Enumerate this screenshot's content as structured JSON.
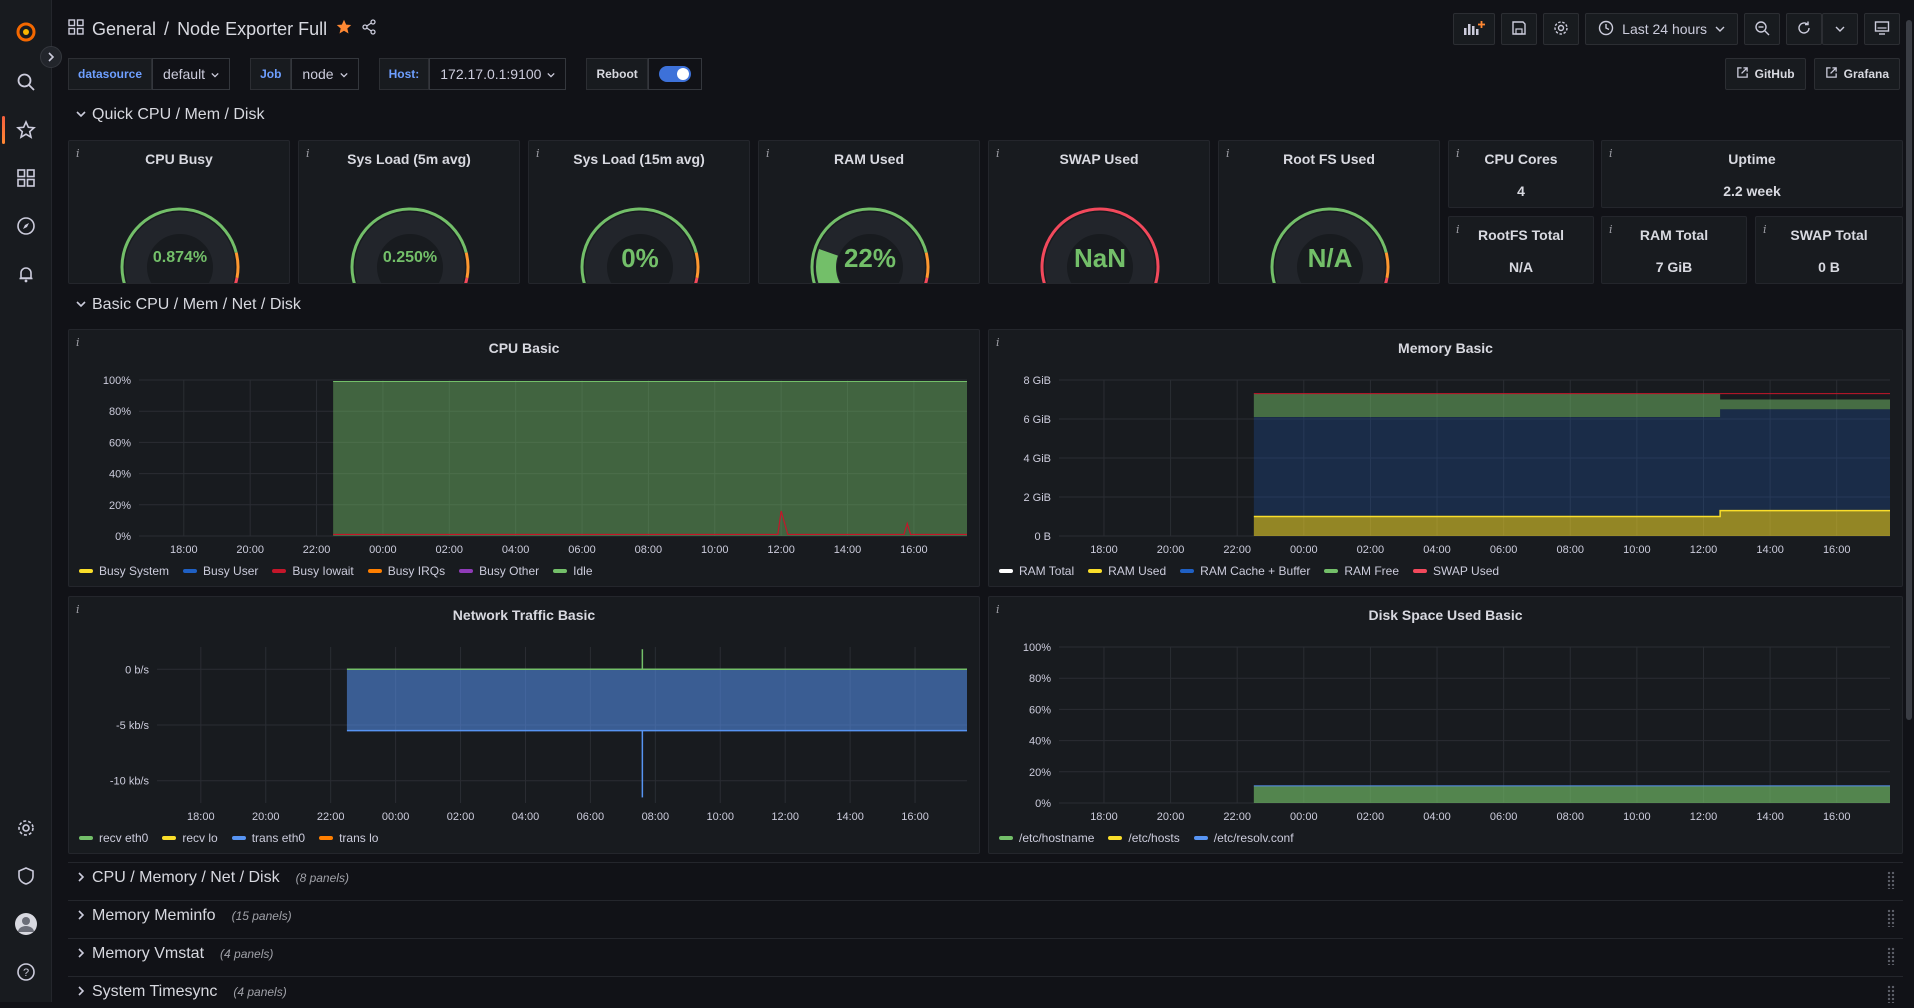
{
  "breadcrumb": {
    "folder": "General",
    "separator": "/",
    "title": "Node Exporter Full"
  },
  "toolbar": {
    "time_range": "Last 24 hours"
  },
  "variables": [
    {
      "label": "datasource",
      "value": "default"
    },
    {
      "label": "Job",
      "value": "node"
    },
    {
      "label": "Host:",
      "value": "172.17.0.1:9100"
    }
  ],
  "reboot_label": "Reboot",
  "links": [
    {
      "label": "GitHub"
    },
    {
      "label": "Grafana"
    }
  ],
  "rows": {
    "quick": "Quick CPU / Mem / Disk",
    "basic": "Basic CPU / Mem / Net / Disk",
    "collapsed": [
      {
        "title": "CPU / Memory / Net / Disk",
        "count": "(8 panels)"
      },
      {
        "title": "Memory Meminfo",
        "count": "(15 panels)"
      },
      {
        "title": "Memory Vmstat",
        "count": "(4 panels)"
      },
      {
        "title": "System Timesync",
        "count": "(4 panels)"
      }
    ]
  },
  "gauges": [
    {
      "title": "CPU Busy",
      "value": "0.874%",
      "fraction": 0.00874
    },
    {
      "title": "Sys Load (5m avg)",
      "value": "0.250%",
      "fraction": 0.0025
    },
    {
      "title": "Sys Load (15m avg)",
      "value": "0%",
      "fraction": 0
    },
    {
      "title": "RAM Used",
      "value": "22%",
      "fraction": 0.22
    },
    {
      "title": "SWAP Used",
      "value": "NaN",
      "fraction": 0
    },
    {
      "title": "Root FS Used",
      "value": "N/A",
      "fraction": 0
    }
  ],
  "stats": [
    {
      "title": "CPU Cores",
      "value": "4"
    },
    {
      "title": "Uptime",
      "value": "2.2 week"
    },
    {
      "title": "RootFS Total",
      "value": "N/A"
    },
    {
      "title": "RAM Total",
      "value": "7 GiB"
    },
    {
      "title": "SWAP Total",
      "value": "0 B"
    }
  ],
  "colors": {
    "green": "#73bf69",
    "yellow": "#fade2a",
    "red": "#f2495c",
    "blue": "#5794f2",
    "orange": "#ff9830",
    "purple": "#b877d9",
    "darkred": "#c4162a"
  },
  "chart_data": [
    {
      "type": "area",
      "title": "CPU Basic",
      "x_ticks": [
        "18:00",
        "20:00",
        "22:00",
        "00:00",
        "02:00",
        "04:00",
        "06:00",
        "08:00",
        "10:00",
        "12:00",
        "14:00",
        "16:00"
      ],
      "y_ticks": [
        "0%",
        "20%",
        "40%",
        "60%",
        "80%",
        "100%"
      ],
      "ylim": [
        0,
        100
      ],
      "data_start": "22:30",
      "series": [
        {
          "name": "Busy System",
          "color": "#fade2a"
        },
        {
          "name": "Busy User",
          "color": "#1f60c4"
        },
        {
          "name": "Busy Iowait",
          "color": "#c4162a"
        },
        {
          "name": "Busy IRQs",
          "color": "#ff7f00"
        },
        {
          "name": "Busy Other",
          "color": "#8f3bb8"
        },
        {
          "name": "Idle",
          "color": "#73bf69",
          "values": [
            99,
            99,
            99,
            99,
            99,
            99,
            99,
            99,
            99,
            98,
            99,
            99
          ]
        }
      ]
    },
    {
      "type": "area",
      "title": "Memory Basic",
      "x_ticks": [
        "18:00",
        "20:00",
        "22:00",
        "00:00",
        "02:00",
        "04:00",
        "06:00",
        "08:00",
        "10:00",
        "12:00",
        "14:00",
        "16:00"
      ],
      "y_ticks": [
        "0 B",
        "2 GiB",
        "4 GiB",
        "6 GiB",
        "8 GiB"
      ],
      "ylim": [
        0,
        8
      ],
      "data_start": "22:30",
      "series": [
        {
          "name": "RAM Total",
          "color": "#ffffff",
          "value": 7.3
        },
        {
          "name": "RAM Used",
          "color": "#fade2a",
          "value": 1.0,
          "value_after_1230": 1.3
        },
        {
          "name": "RAM Cache + Buffer",
          "color": "#1f60c4",
          "value": 5.0
        },
        {
          "name": "RAM Free",
          "color": "#73bf69",
          "value": 0.7
        },
        {
          "name": "SWAP Used",
          "color": "#f2495c",
          "value": 0
        }
      ]
    },
    {
      "type": "area",
      "title": "Network Traffic Basic",
      "x_ticks": [
        "18:00",
        "20:00",
        "22:00",
        "00:00",
        "02:00",
        "04:00",
        "06:00",
        "08:00",
        "10:00",
        "12:00",
        "14:00",
        "16:00"
      ],
      "y_ticks": [
        "0 b/s",
        "-5 kb/s",
        "-10 kb/s"
      ],
      "ylim": [
        -12,
        2
      ],
      "data_start": "22:30",
      "series": [
        {
          "name": "recv eth0",
          "color": "#73bf69",
          "value": 0
        },
        {
          "name": "recv lo",
          "color": "#fade2a",
          "value": 0
        },
        {
          "name": "trans eth0",
          "color": "#5794f2",
          "value": -5.5
        },
        {
          "name": "trans lo",
          "color": "#ff7f00",
          "value": 0
        }
      ]
    },
    {
      "type": "area",
      "title": "Disk Space Used Basic",
      "x_ticks": [
        "18:00",
        "20:00",
        "22:00",
        "00:00",
        "02:00",
        "04:00",
        "06:00",
        "08:00",
        "10:00",
        "12:00",
        "14:00",
        "16:00"
      ],
      "y_ticks": [
        "0%",
        "20%",
        "40%",
        "60%",
        "80%",
        "100%"
      ],
      "ylim": [
        0,
        100
      ],
      "data_start": "22:30",
      "series": [
        {
          "name": "/etc/hostname",
          "color": "#73bf69",
          "value": 11
        },
        {
          "name": "/etc/hosts",
          "color": "#fade2a",
          "value": 11
        },
        {
          "name": "/etc/resolv.conf",
          "color": "#5794f2",
          "value": 11
        }
      ]
    }
  ]
}
